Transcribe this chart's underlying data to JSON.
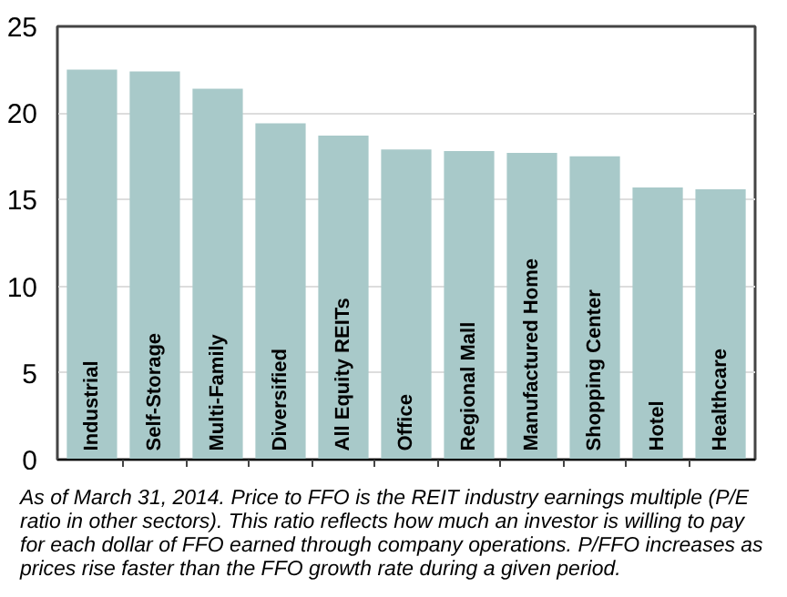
{
  "chart_data": {
    "type": "bar",
    "categories": [
      "Industrial",
      "Self-Storage",
      "Multi-Family",
      "Diversified",
      "All Equity REITs",
      "Office",
      "Regional Mall",
      "Manufactured Home",
      "Shopping Center",
      "Hotel",
      "Healthcare"
    ],
    "values": [
      22.5,
      22.4,
      21.4,
      19.4,
      18.7,
      17.9,
      17.8,
      17.7,
      17.5,
      15.7,
      15.6
    ],
    "color": "#a8c9c9",
    "ylim": [
      0,
      25
    ],
    "yticks": [
      0,
      5,
      10,
      15,
      20,
      25
    ],
    "grid": "y",
    "annotations": [
      "As of March 31, 2014. Price to FFO is the REIT industry earnings multiple (P/E ratio in other sectors). This ratio reflects how much an investor is willing to pay for each dollar of FFO earned through company operations. P/FFO increases as prices rise faster than the FFO growth rate during a given period."
    ]
  }
}
